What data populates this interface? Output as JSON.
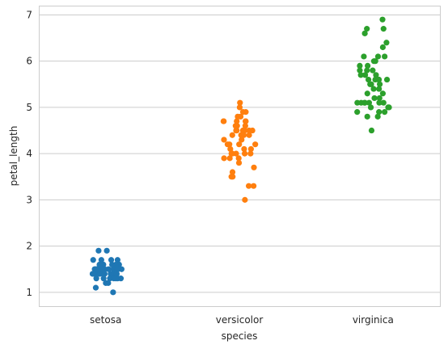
{
  "chart_data": {
    "type": "scatter",
    "subtype": "strip",
    "title": "",
    "xlabel": "species",
    "ylabel": "petal_length",
    "categories": [
      "setosa",
      "versicolor",
      "virginica"
    ],
    "ylim": [
      0.7,
      7.2
    ],
    "yticks": [
      1,
      2,
      3,
      4,
      5,
      6,
      7
    ],
    "grid": "horizontal",
    "colors": [
      "#1f77b4",
      "#ff7f0e",
      "#2ca02c"
    ],
    "series": [
      {
        "category": "setosa",
        "values": [
          1.4,
          1.4,
          1.3,
          1.5,
          1.4,
          1.7,
          1.4,
          1.5,
          1.4,
          1.5,
          1.5,
          1.6,
          1.4,
          1.1,
          1.2,
          1.5,
          1.3,
          1.4,
          1.7,
          1.5,
          1.7,
          1.5,
          1.0,
          1.7,
          1.9,
          1.6,
          1.6,
          1.5,
          1.4,
          1.6,
          1.6,
          1.5,
          1.5,
          1.4,
          1.5,
          1.2,
          1.3,
          1.4,
          1.3,
          1.5,
          1.3,
          1.3,
          1.3,
          1.6,
          1.9,
          1.4,
          1.6,
          1.4,
          1.5,
          1.4
        ]
      },
      {
        "category": "versicolor",
        "values": [
          4.7,
          4.5,
          4.9,
          4.0,
          4.6,
          4.5,
          4.7,
          3.3,
          4.6,
          3.9,
          3.5,
          4.2,
          4.0,
          4.7,
          3.6,
          4.4,
          4.5,
          4.1,
          4.5,
          3.9,
          4.8,
          4.0,
          4.9,
          4.7,
          4.3,
          4.4,
          4.8,
          5.0,
          4.5,
          3.5,
          3.8,
          3.7,
          3.9,
          5.1,
          4.5,
          4.5,
          4.7,
          4.4,
          4.1,
          4.0,
          4.4,
          4.6,
          4.0,
          3.3,
          4.2,
          4.2,
          4.2,
          4.3,
          3.0,
          4.1
        ]
      },
      {
        "category": "virginica",
        "values": [
          6.0,
          5.1,
          5.9,
          5.6,
          5.8,
          6.6,
          4.5,
          6.3,
          5.8,
          6.1,
          5.1,
          5.3,
          5.5,
          5.0,
          5.1,
          5.3,
          5.5,
          6.7,
          6.9,
          5.0,
          5.7,
          4.9,
          6.7,
          4.9,
          5.7,
          6.0,
          4.8,
          4.9,
          5.6,
          5.8,
          6.1,
          6.4,
          5.6,
          5.1,
          5.6,
          6.1,
          5.6,
          5.5,
          4.8,
          5.4,
          5.6,
          5.1,
          5.1,
          5.9,
          5.7,
          5.2,
          5.0,
          5.2,
          5.4,
          5.1
        ]
      }
    ]
  }
}
